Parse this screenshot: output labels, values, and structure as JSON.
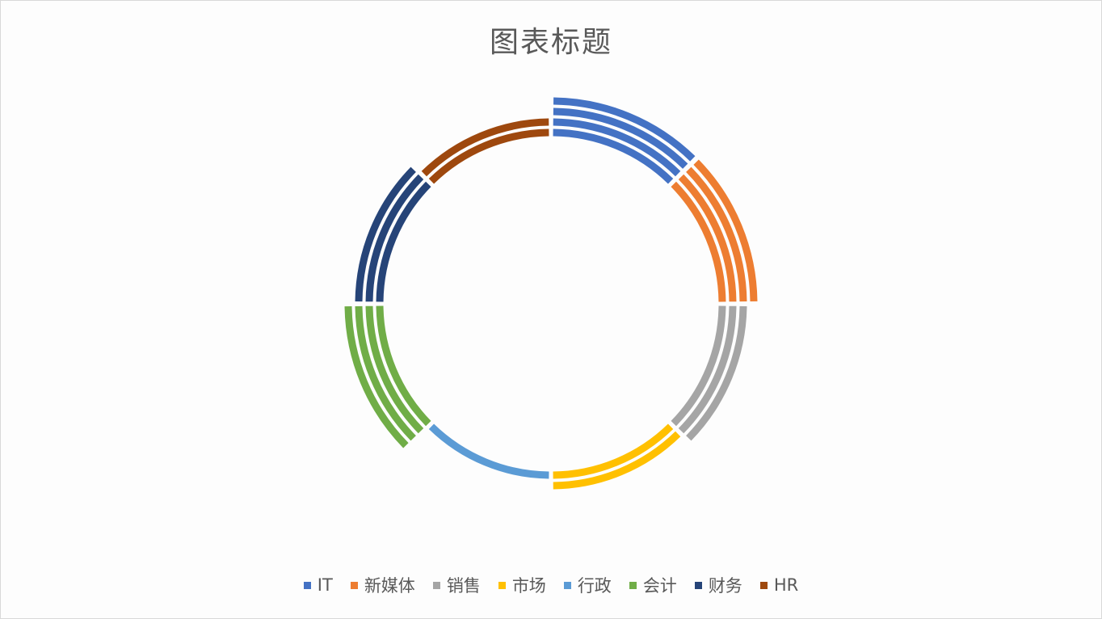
{
  "chart_data": {
    "type": "donut",
    "title": "图表标题",
    "categories": [
      "IT",
      "新媒体",
      "销售",
      "市场",
      "行政",
      "会计",
      "财务",
      "HR"
    ],
    "colors": [
      "#4472c4",
      "#ed7d31",
      "#a5a5a5",
      "#ffc000",
      "#5b9bd5",
      "#70ad47",
      "#264478",
      "#9e480e"
    ],
    "values": [
      1,
      1,
      1,
      1,
      1,
      1,
      1,
      1
    ],
    "ring_counts": [
      4,
      4,
      3,
      2,
      1,
      4,
      3,
      2
    ],
    "legend_position": "bottom",
    "grid": false
  }
}
